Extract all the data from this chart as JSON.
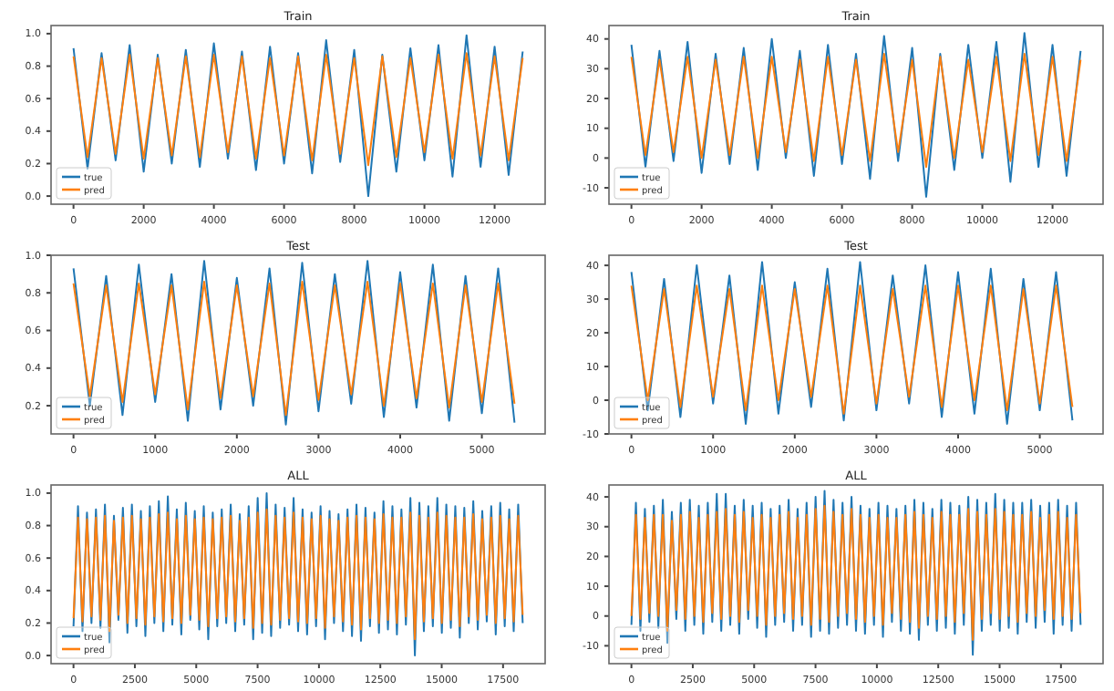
{
  "chart_data": [
    {
      "type": "line",
      "title": "Train",
      "legend": "bottom left",
      "x": [
        0,
        400,
        800,
        1200,
        1600,
        2000,
        2400,
        2800,
        3200,
        3600,
        4000,
        4400,
        4800,
        5200,
        5600,
        6000,
        6400,
        6800,
        7200,
        7600,
        8000,
        8400,
        8800,
        9200,
        9600,
        10000,
        10400,
        10800,
        11200,
        11600,
        12000,
        12400,
        12800
      ],
      "xlim": [
        -640,
        13440
      ],
      "xticks": [
        0,
        2000,
        4000,
        6000,
        8000,
        10000,
        12000
      ],
      "ylim": [
        -0.05,
        1.05
      ],
      "yticks": [
        {
          "value": 0,
          "label": "0.0"
        },
        {
          "value": 0.2,
          "label": "0.2"
        },
        {
          "value": 0.4,
          "label": "0.4"
        },
        {
          "value": 0.6,
          "label": "0.6"
        },
        {
          "value": 0.8,
          "label": "0.8"
        },
        {
          "value": 1,
          "label": "1.0"
        }
      ],
      "series": [
        {
          "name": "true",
          "color": "#1f77b4",
          "values": [
            0.91,
            0.17,
            0.88,
            0.22,
            0.93,
            0.15,
            0.87,
            0.2,
            0.9,
            0.18,
            0.94,
            0.23,
            0.89,
            0.16,
            0.92,
            0.2,
            0.88,
            0.14,
            0.96,
            0.21,
            0.9,
            0.0,
            0.87,
            0.15,
            0.91,
            0.22,
            0.93,
            0.12,
            0.99,
            0.18,
            0.92,
            0.13,
            0.89
          ]
        },
        {
          "name": "pred",
          "color": "#ff7f0e",
          "values": [
            0.86,
            0.24,
            0.85,
            0.26,
            0.87,
            0.23,
            0.85,
            0.25,
            0.86,
            0.24,
            0.87,
            0.27,
            0.86,
            0.23,
            0.85,
            0.25,
            0.86,
            0.22,
            0.87,
            0.26,
            0.85,
            0.19,
            0.86,
            0.24,
            0.85,
            0.27,
            0.87,
            0.23,
            0.88,
            0.25,
            0.86,
            0.22,
            0.85
          ]
        }
      ]
    },
    {
      "type": "line",
      "title": "Train",
      "legend": "bottom left",
      "x": [
        0,
        400,
        800,
        1200,
        1600,
        2000,
        2400,
        2800,
        3200,
        3600,
        4000,
        4400,
        4800,
        5200,
        5600,
        6000,
        6400,
        6800,
        7200,
        7600,
        8000,
        8400,
        8800,
        9200,
        9600,
        10000,
        10400,
        10800,
        11200,
        11600,
        12000,
        12400,
        12800
      ],
      "xlim": [
        -640,
        13440
      ],
      "xticks": [
        0,
        2000,
        4000,
        6000,
        8000,
        10000,
        12000
      ],
      "ylim": [
        -15.5,
        44.5
      ],
      "yticks": [
        -10,
        0,
        10,
        20,
        30,
        40
      ],
      "series": [
        {
          "name": "true",
          "color": "#1f77b4",
          "values": [
            38,
            -3,
            36,
            -1,
            39,
            -5,
            35,
            -2,
            37,
            -4,
            40,
            0,
            36,
            -6,
            38,
            -2,
            35,
            -7,
            41,
            -1,
            37,
            -13,
            35,
            -4,
            38,
            0,
            39,
            -8,
            42,
            -3,
            38,
            -6,
            36
          ]
        },
        {
          "name": "pred",
          "color": "#ff7f0e",
          "values": [
            34,
            1,
            33,
            2,
            34,
            0,
            33,
            1,
            34,
            0,
            34,
            2,
            33,
            -1,
            34,
            1,
            33,
            -1,
            35,
            2,
            33,
            -3,
            34,
            0,
            33,
            2,
            34,
            -1,
            35,
            1,
            34,
            -1,
            33
          ]
        }
      ]
    },
    {
      "type": "line",
      "title": "Test",
      "legend": "bottom left",
      "x": [
        0,
        200,
        400,
        600,
        800,
        1000,
        1200,
        1400,
        1600,
        1800,
        2000,
        2200,
        2400,
        2600,
        2800,
        3000,
        3200,
        3400,
        3600,
        3800,
        4000,
        4200,
        4400,
        4600,
        4800,
        5000,
        5200,
        5400
      ],
      "xlim": [
        -275,
        5775
      ],
      "xticks": [
        0,
        1000,
        2000,
        3000,
        4000,
        5000
      ],
      "ylim": [
        0.05,
        1.0
      ],
      "yticks": [
        {
          "value": 0.2,
          "label": "0.2"
        },
        {
          "value": 0.4,
          "label": "0.4"
        },
        {
          "value": 0.6,
          "label": "0.6"
        },
        {
          "value": 0.8,
          "label": "0.8"
        },
        {
          "value": 1,
          "label": "1.0"
        }
      ],
      "series": [
        {
          "name": "true",
          "color": "#1f77b4",
          "values": [
            0.93,
            0.2,
            0.89,
            0.15,
            0.95,
            0.22,
            0.9,
            0.12,
            0.97,
            0.18,
            0.88,
            0.2,
            0.93,
            0.1,
            0.96,
            0.17,
            0.9,
            0.21,
            0.97,
            0.14,
            0.91,
            0.19,
            0.95,
            0.12,
            0.89,
            0.16,
            0.93,
            0.11
          ]
        },
        {
          "name": "pred",
          "color": "#ff7f0e",
          "values": [
            0.85,
            0.25,
            0.84,
            0.22,
            0.85,
            0.26,
            0.84,
            0.18,
            0.86,
            0.24,
            0.84,
            0.25,
            0.85,
            0.15,
            0.86,
            0.23,
            0.84,
            0.26,
            0.86,
            0.2,
            0.85,
            0.24,
            0.85,
            0.19,
            0.84,
            0.22,
            0.85,
            0.21
          ]
        }
      ]
    },
    {
      "type": "line",
      "title": "Test",
      "legend": "bottom left",
      "x": [
        0,
        200,
        400,
        600,
        800,
        1000,
        1200,
        1400,
        1600,
        1800,
        2000,
        2200,
        2400,
        2600,
        2800,
        3000,
        3200,
        3400,
        3600,
        3800,
        4000,
        4200,
        4400,
        4600,
        4800,
        5000,
        5200,
        5400
      ],
      "xlim": [
        -275,
        5775
      ],
      "xticks": [
        0,
        1000,
        2000,
        3000,
        4000,
        5000
      ],
      "ylim": [
        -10,
        43
      ],
      "yticks": [
        -10,
        0,
        10,
        20,
        30,
        40
      ],
      "series": [
        {
          "name": "true",
          "color": "#1f77b4",
          "values": [
            38,
            -3,
            36,
            -5,
            40,
            -1,
            37,
            -7,
            41,
            -4,
            35,
            -2,
            39,
            -6,
            41,
            -3,
            37,
            -1,
            40,
            -5,
            38,
            -4,
            39,
            -7,
            36,
            -3,
            38,
            -6
          ]
        },
        {
          "name": "pred",
          "color": "#ff7f0e",
          "values": [
            34,
            0,
            33,
            -2,
            34,
            1,
            33,
            -3,
            34,
            0,
            33,
            1,
            34,
            -4,
            34,
            -1,
            33,
            1,
            34,
            -2,
            34,
            0,
            34,
            -3,
            33,
            -1,
            34,
            -2
          ]
        }
      ]
    },
    {
      "type": "line",
      "title": "ALL",
      "legend": "bottom left",
      "x": [
        0,
        183,
        366,
        549,
        732,
        915,
        1098,
        1281,
        1464,
        1647,
        1830,
        2013,
        2196,
        2379,
        2562,
        2745,
        2928,
        3111,
        3294,
        3477,
        3660,
        3843,
        4026,
        4209,
        4392,
        4575,
        4758,
        4941,
        5124,
        5307,
        5490,
        5673,
        5856,
        6039,
        6222,
        6405,
        6588,
        6771,
        6954,
        7137,
        7320,
        7503,
        7686,
        7869,
        8052,
        8235,
        8418,
        8601,
        8784,
        8967,
        9150,
        9333,
        9516,
        9699,
        9882,
        10065,
        10248,
        10431,
        10614,
        10797,
        10980,
        11163,
        11346,
        11529,
        11712,
        11895,
        12078,
        12261,
        12444,
        12627,
        12810,
        12993,
        13176,
        13359,
        13542,
        13725,
        13908,
        14091,
        14274,
        14457,
        14640,
        14823,
        15006,
        15189,
        15372,
        15555,
        15738,
        15921,
        16104,
        16287,
        16470,
        16653,
        16836,
        17019,
        17202,
        17385,
        17568,
        17751,
        17934,
        18117,
        18300
      ],
      "xlim": [
        -915,
        19215
      ],
      "xticks": [
        0,
        2500,
        5000,
        7500,
        10000,
        12500,
        15000,
        17500
      ],
      "ylim": [
        -0.05,
        1.05
      ],
      "yticks": [
        {
          "value": 0,
          "label": "0.0"
        },
        {
          "value": 0.2,
          "label": "0.2"
        },
        {
          "value": 0.4,
          "label": "0.4"
        },
        {
          "value": 0.6,
          "label": "0.6"
        },
        {
          "value": 0.8,
          "label": "0.8"
        },
        {
          "value": 1,
          "label": "1.0"
        }
      ],
      "series": [
        {
          "name": "true",
          "color": "#1f77b4",
          "values": [
            0.18,
            0.92,
            0.15,
            0.88,
            0.2,
            0.9,
            0.17,
            0.93,
            0.08,
            0.86,
            0.22,
            0.91,
            0.14,
            0.93,
            0.18,
            0.89,
            0.12,
            0.92,
            0.2,
            0.95,
            0.15,
            0.98,
            0.19,
            0.9,
            0.13,
            0.94,
            0.22,
            0.89,
            0.16,
            0.92,
            0.1,
            0.88,
            0.18,
            0.9,
            0.2,
            0.93,
            0.15,
            0.87,
            0.19,
            0.92,
            0.1,
            0.97,
            0.14,
            1.0,
            0.12,
            0.93,
            0.17,
            0.91,
            0.19,
            0.97,
            0.15,
            0.9,
            0.13,
            0.88,
            0.18,
            0.92,
            0.1,
            0.89,
            0.2,
            0.87,
            0.15,
            0.9,
            0.12,
            0.93,
            0.09,
            0.91,
            0.18,
            0.88,
            0.14,
            0.95,
            0.16,
            0.92,
            0.13,
            0.9,
            0.19,
            0.97,
            0.0,
            0.94,
            0.15,
            0.92,
            0.18,
            0.97,
            0.14,
            0.93,
            0.17,
            0.92,
            0.11,
            0.91,
            0.2,
            0.95,
            0.16,
            0.89,
            0.21,
            0.92,
            0.13,
            0.94,
            0.18,
            0.9,
            0.15,
            0.93,
            0.2
          ]
        },
        {
          "name": "pred",
          "color": "#ff7f0e",
          "values": [
            0.23,
            0.85,
            0.21,
            0.84,
            0.24,
            0.85,
            0.22,
            0.86,
            0.15,
            0.83,
            0.25,
            0.85,
            0.2,
            0.86,
            0.23,
            0.84,
            0.19,
            0.85,
            0.24,
            0.87,
            0.21,
            0.88,
            0.23,
            0.84,
            0.2,
            0.86,
            0.25,
            0.84,
            0.22,
            0.85,
            0.18,
            0.84,
            0.23,
            0.85,
            0.24,
            0.86,
            0.21,
            0.83,
            0.23,
            0.85,
            0.17,
            0.88,
            0.2,
            0.9,
            0.19,
            0.86,
            0.22,
            0.85,
            0.23,
            0.88,
            0.21,
            0.85,
            0.2,
            0.84,
            0.23,
            0.86,
            0.17,
            0.84,
            0.24,
            0.83,
            0.21,
            0.85,
            0.19,
            0.86,
            0.16,
            0.85,
            0.23,
            0.84,
            0.2,
            0.87,
            0.22,
            0.85,
            0.2,
            0.85,
            0.24,
            0.88,
            0.1,
            0.86,
            0.21,
            0.85,
            0.23,
            0.88,
            0.2,
            0.86,
            0.22,
            0.85,
            0.18,
            0.85,
            0.24,
            0.87,
            0.22,
            0.84,
            0.25,
            0.85,
            0.2,
            0.86,
            0.23,
            0.84,
            0.21,
            0.86,
            0.25
          ]
        }
      ]
    },
    {
      "type": "line",
      "title": "ALL",
      "legend": "bottom left",
      "x": [
        0,
        183,
        366,
        549,
        732,
        915,
        1098,
        1281,
        1464,
        1647,
        1830,
        2013,
        2196,
        2379,
        2562,
        2745,
        2928,
        3111,
        3294,
        3477,
        3660,
        3843,
        4026,
        4209,
        4392,
        4575,
        4758,
        4941,
        5124,
        5307,
        5490,
        5673,
        5856,
        6039,
        6222,
        6405,
        6588,
        6771,
        6954,
        7137,
        7320,
        7503,
        7686,
        7869,
        8052,
        8235,
        8418,
        8601,
        8784,
        8967,
        9150,
        9333,
        9516,
        9699,
        9882,
        10065,
        10248,
        10431,
        10614,
        10797,
        10980,
        11163,
        11346,
        11529,
        11712,
        11895,
        12078,
        12261,
        12444,
        12627,
        12810,
        12993,
        13176,
        13359,
        13542,
        13725,
        13908,
        14091,
        14274,
        14457,
        14640,
        14823,
        15006,
        15189,
        15372,
        15555,
        15738,
        15921,
        16104,
        16287,
        16470,
        16653,
        16836,
        17019,
        17202,
        17385,
        17568,
        17751,
        17934,
        18117,
        18300
      ],
      "xlim": [
        -915,
        19215
      ],
      "xticks": [
        0,
        2500,
        5000,
        7500,
        10000,
        12500,
        15000,
        17500
      ],
      "ylim": [
        -16,
        44
      ],
      "yticks": [
        -10,
        0,
        10,
        20,
        30,
        40
      ],
      "series": [
        {
          "name": "true",
          "color": "#1f77b4",
          "values": [
            -3,
            38,
            -5,
            36,
            -2,
            37,
            -4,
            39,
            -9,
            35,
            -1,
            38,
            -5,
            39,
            -3,
            37,
            -6,
            38,
            -2,
            41,
            -5,
            41,
            -3,
            37,
            -6,
            39,
            -1,
            37,
            -4,
            38,
            -7,
            36,
            -3,
            37,
            -2,
            39,
            -5,
            36,
            -3,
            38,
            -7,
            40,
            -5,
            42,
            -6,
            39,
            -4,
            38,
            -3,
            40,
            -5,
            37,
            -6,
            36,
            -3,
            38,
            -7,
            37,
            -2,
            36,
            -5,
            37,
            -6,
            39,
            -8,
            38,
            -3,
            36,
            -5,
            39,
            -4,
            38,
            -6,
            37,
            -3,
            40,
            -13,
            39,
            -5,
            38,
            -3,
            41,
            -5,
            39,
            -4,
            38,
            -6,
            38,
            -2,
            39,
            -4,
            37,
            -2,
            38,
            -6,
            39,
            -3,
            37,
            -5,
            38,
            -3
          ]
        },
        {
          "name": "pred",
          "color": "#ff7f0e",
          "values": [
            0,
            34,
            -1,
            33,
            1,
            34,
            0,
            34,
            -5,
            32,
            2,
            34,
            -1,
            35,
            0,
            33,
            -2,
            34,
            1,
            35,
            -1,
            36,
            0,
            34,
            -2,
            35,
            2,
            33,
            0,
            34,
            -3,
            33,
            0,
            34,
            1,
            35,
            -1,
            33,
            0,
            34,
            -3,
            36,
            -1,
            37,
            -2,
            35,
            0,
            34,
            1,
            36,
            -1,
            34,
            -2,
            33,
            0,
            34,
            -3,
            33,
            1,
            33,
            -1,
            34,
            -2,
            35,
            -4,
            34,
            0,
            33,
            -1,
            35,
            0,
            34,
            -2,
            34,
            1,
            36,
            -8,
            35,
            -1,
            34,
            1,
            36,
            -1,
            35,
            0,
            34,
            -2,
            34,
            1,
            35,
            0,
            33,
            2,
            34,
            -1,
            35,
            0,
            33,
            -1,
            34,
            1
          ]
        }
      ]
    }
  ]
}
